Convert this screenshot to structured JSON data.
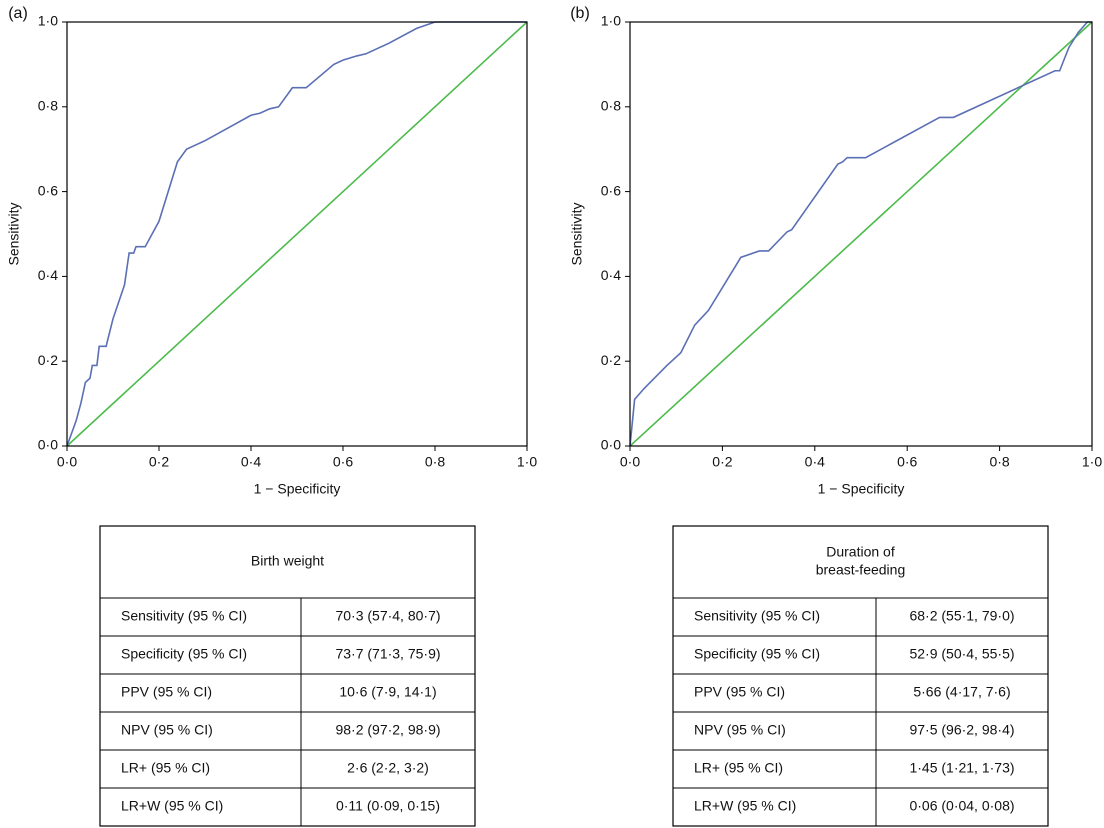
{
  "chart_data": [
    {
      "type": "line",
      "panel_label": "(a)",
      "x_label": "1 − Specificity",
      "y_label": "Sensitivity",
      "xlim": [
        0,
        1
      ],
      "ylim": [
        0,
        1
      ],
      "xticks": [
        {
          "value": 0,
          "label": "0·0"
        },
        {
          "value": 0.2,
          "label": "0·2"
        },
        {
          "value": 0.4,
          "label": "0·4"
        },
        {
          "value": 0.6,
          "label": "0·6"
        },
        {
          "value": 0.8,
          "label": "0·8"
        },
        {
          "value": 1,
          "label": "1·0"
        }
      ],
      "yticks": [
        {
          "value": 0,
          "label": "0·0"
        },
        {
          "value": 0.2,
          "label": "0·2"
        },
        {
          "value": 0.4,
          "label": "0·4"
        },
        {
          "value": 0.6,
          "label": "0·6"
        },
        {
          "value": 0.8,
          "label": "0·8"
        },
        {
          "value": 1,
          "label": "1·0"
        }
      ],
      "series": [
        {
          "color": "#5b6fb5",
          "x": [
            0,
            0.01,
            0.02,
            0.03,
            0.04,
            0.05,
            0.055,
            0.065,
            0.07,
            0.085,
            0.1,
            0.125,
            0.135,
            0.145,
            0.15,
            0.17,
            0.2,
            0.24,
            0.26,
            0.3,
            0.4,
            0.42,
            0.44,
            0.46,
            0.49,
            0.52,
            0.58,
            0.6,
            0.63,
            0.65,
            0.7,
            0.76,
            0.8,
            1
          ],
          "values": [
            0,
            0.03,
            0.06,
            0.1,
            0.15,
            0.16,
            0.19,
            0.19,
            0.235,
            0.235,
            0.3,
            0.38,
            0.455,
            0.455,
            0.47,
            0.47,
            0.53,
            0.67,
            0.7,
            0.72,
            0.78,
            0.785,
            0.795,
            0.8,
            0.845,
            0.845,
            0.9,
            0.91,
            0.92,
            0.925,
            0.95,
            0.985,
            1,
            1
          ]
        },
        {
          "color": "#4cbb4c",
          "x": [
            0,
            1
          ],
          "values": [
            0,
            1
          ]
        }
      ]
    },
    {
      "type": "line",
      "panel_label": "(b)",
      "x_label": "1 − Specificity",
      "y_label": "Sensitivity",
      "xlim": [
        0,
        1
      ],
      "ylim": [
        0,
        1
      ],
      "xticks": [
        {
          "value": 0,
          "label": "0·0"
        },
        {
          "value": 0.2,
          "label": "0·2"
        },
        {
          "value": 0.4,
          "label": "0·4"
        },
        {
          "value": 0.6,
          "label": "0·6"
        },
        {
          "value": 0.8,
          "label": "0·8"
        },
        {
          "value": 1,
          "label": "1·0"
        }
      ],
      "yticks": [
        {
          "value": 0,
          "label": "0·0"
        },
        {
          "value": 0.2,
          "label": "0·2"
        },
        {
          "value": 0.4,
          "label": "0·4"
        },
        {
          "value": 0.6,
          "label": "0·6"
        },
        {
          "value": 0.8,
          "label": "0·8"
        },
        {
          "value": 1,
          "label": "1·0"
        }
      ],
      "series": [
        {
          "color": "#5b6fb5",
          "x": [
            0,
            0.01,
            0.03,
            0.08,
            0.11,
            0.14,
            0.17,
            0.24,
            0.28,
            0.3,
            0.34,
            0.35,
            0.45,
            0.46,
            0.47,
            0.51,
            0.67,
            0.7,
            0.92,
            0.93,
            0.95,
            0.97,
            0.99,
            1
          ],
          "values": [
            0,
            0.11,
            0.135,
            0.19,
            0.22,
            0.285,
            0.32,
            0.445,
            0.46,
            0.46,
            0.505,
            0.51,
            0.665,
            0.67,
            0.68,
            0.68,
            0.775,
            0.775,
            0.885,
            0.885,
            0.94,
            0.975,
            1,
            1
          ]
        },
        {
          "color": "#4cbb4c",
          "x": [
            0,
            1
          ],
          "values": [
            0,
            1
          ]
        }
      ]
    }
  ],
  "tables": [
    {
      "header_lines": [
        "Birth weight"
      ],
      "rows": [
        [
          "Sensitivity (95 % CI)",
          "70·3 (57·4, 80·7)"
        ],
        [
          "Specificity (95 % CI)",
          "73·7 (71·3, 75·9)"
        ],
        [
          "PPV (95 % CI)",
          "10·6 (7·9, 14·1)"
        ],
        [
          "NPV (95 % CI)",
          "98·2 (97·2, 98·9)"
        ],
        [
          "LR+ (95 % CI)",
          "2·6 (2·2, 3·2)"
        ],
        [
          "LR+W (95 % CI)",
          "0·11 (0·09, 0·15)"
        ]
      ]
    },
    {
      "header_lines": [
        "Duration of",
        "breast-feeding"
      ],
      "rows": [
        [
          "Sensitivity (95 % CI)",
          "68·2 (55·1, 79·0)"
        ],
        [
          "Specificity (95 % CI)",
          "52·9 (50·4, 55·5)"
        ],
        [
          "PPV (95 % CI)",
          "5·66 (4·17, 7·6)"
        ],
        [
          "NPV (95 % CI)",
          "97·5 (96·2, 98·4)"
        ],
        [
          "LR+ (95 % CI)",
          "1·45 (1·21, 1·73)"
        ],
        [
          "LR+W (95 % CI)",
          "0·06 (0·04, 0·08)"
        ]
      ]
    }
  ]
}
